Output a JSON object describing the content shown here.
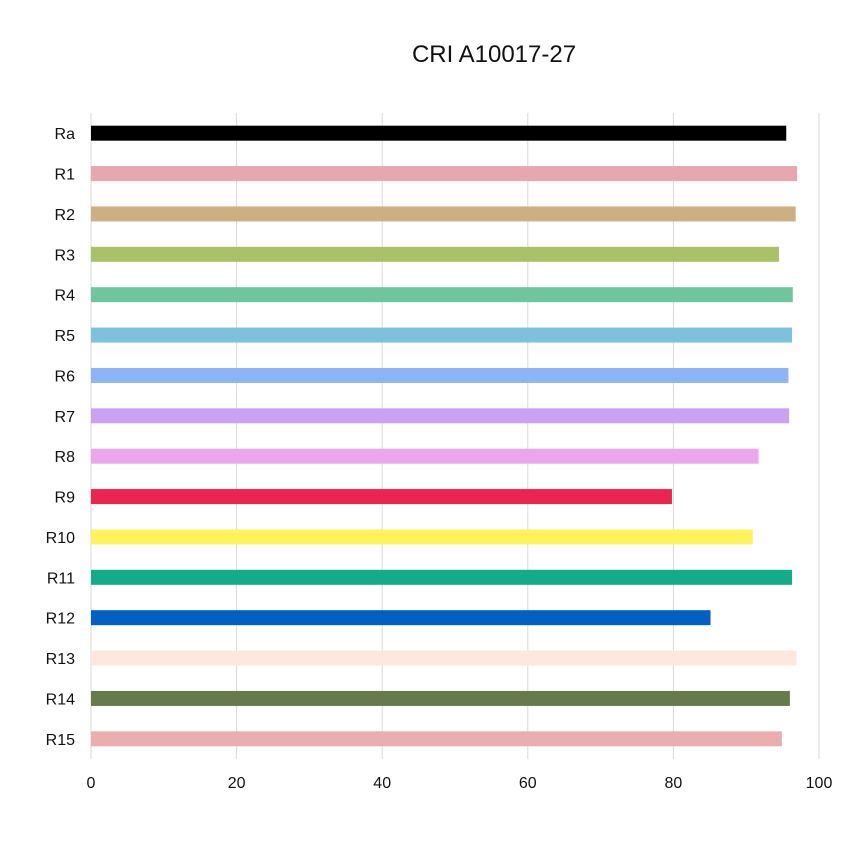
{
  "chart_data": {
    "type": "bar",
    "orientation": "horizontal",
    "title": "CRI A10017-27",
    "xlabel": "",
    "ylabel": "",
    "xlim": [
      0,
      100
    ],
    "ticks": [
      0,
      20,
      40,
      60,
      80,
      100
    ],
    "grid": "vertical",
    "legend": "none",
    "categories": [
      "Ra",
      "R1",
      "R2",
      "R3",
      "R4",
      "R5",
      "R6",
      "R7",
      "R8",
      "R9",
      "R10",
      "R11",
      "R12",
      "R13",
      "R14",
      "R15"
    ],
    "values": [
      95.5,
      97,
      96.8,
      94.5,
      96.4,
      96.3,
      95.8,
      95.9,
      91.7,
      79.8,
      90.9,
      96.3,
      85.1,
      96.9,
      96,
      94.9
    ],
    "colors": [
      "#000000",
      "#E6A7AE",
      "#CDB081",
      "#A9C167",
      "#6EC69D",
      "#7DC2DC",
      "#8DB4F6",
      "#C9A2F5",
      "#ECA7EA",
      "#EC2450",
      "#FFF25A",
      "#12AC88",
      "#035FC3",
      "#FDE8DB",
      "#667A4B",
      "#EBAEAE"
    ]
  }
}
